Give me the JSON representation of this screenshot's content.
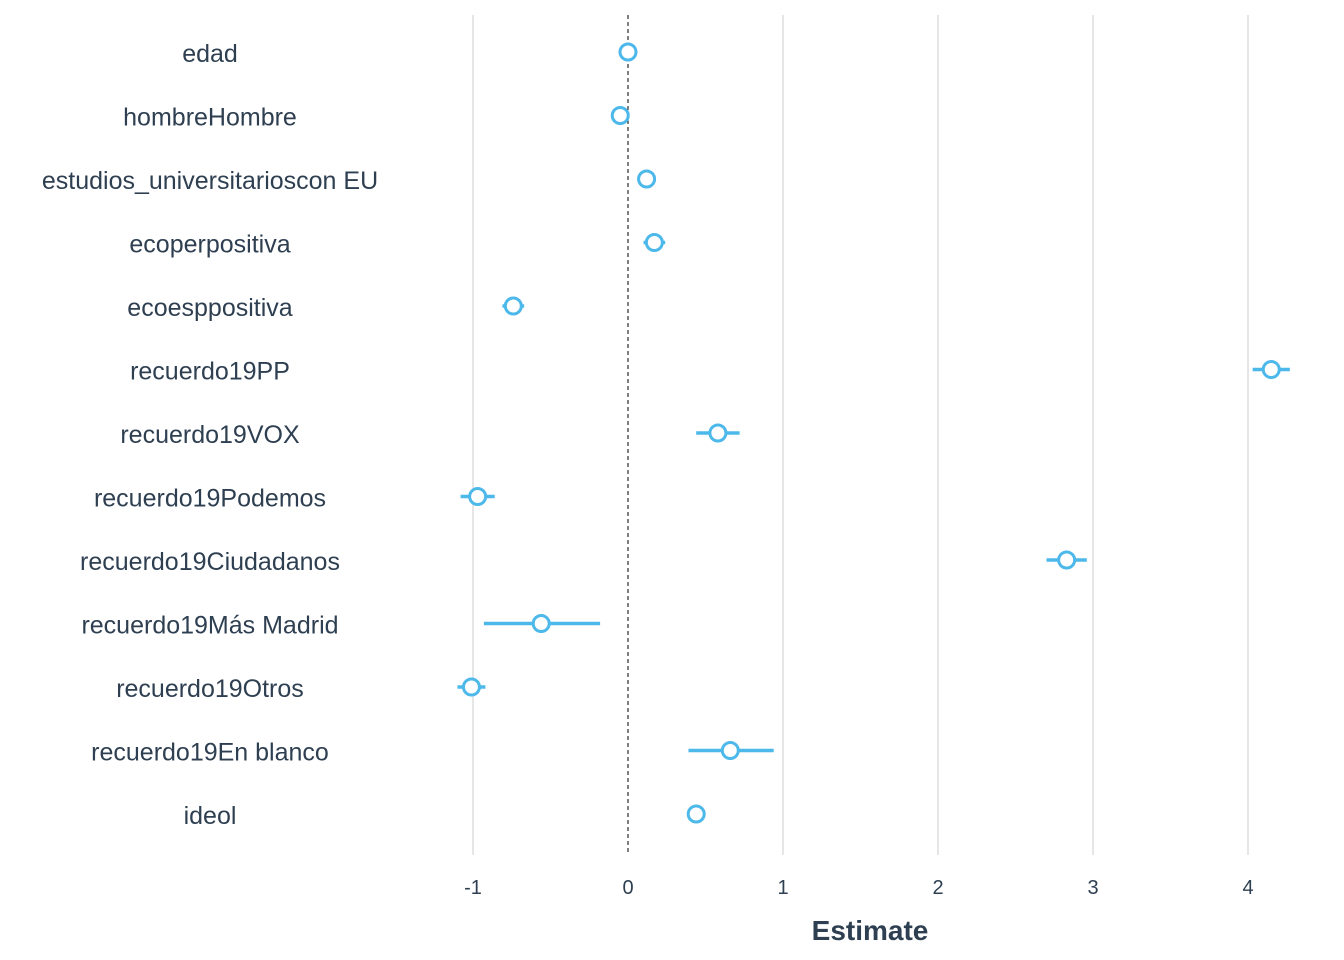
{
  "chart_data": {
    "type": "scatter",
    "title": "",
    "xlabel": "Estimate",
    "ylabel": "",
    "xlim": [
      -1.37,
      4.27
    ],
    "x_ticks": [
      -1,
      0,
      1,
      2,
      3,
      4
    ],
    "x_tick_labels": [
      "-1",
      "0",
      "1",
      "2",
      "3",
      "4"
    ],
    "reference_line": 0,
    "grid": "vertical major lines only",
    "legend": "none",
    "point_color": "#4db8ea",
    "series": [
      {
        "terms": [
          "edad",
          "hombreHombre",
          "estudios_universitarioscon EU",
          "ecoperpositiva",
          "ecoesppositiva",
          "recuerdo19PP",
          "recuerdo19VOX",
          "recuerdo19Podemos",
          "recuerdo19Ciudadanos",
          "recuerdo19Más Madrid",
          "recuerdo19Otros",
          "recuerdo19En blanco",
          "ideol"
        ],
        "estimate": [
          0.0,
          -0.05,
          0.12,
          0.17,
          -0.74,
          4.15,
          0.58,
          -0.97,
          2.83,
          -0.56,
          -1.01,
          0.66,
          0.44
        ],
        "conf_low": [
          -0.02,
          -0.09,
          0.06,
          0.1,
          -0.81,
          4.03,
          0.44,
          -1.08,
          2.7,
          -0.93,
          -1.1,
          0.39,
          0.41
        ],
        "conf_high": [
          0.02,
          -0.01,
          0.18,
          0.24,
          -0.67,
          4.27,
          0.72,
          -0.86,
          2.96,
          -0.18,
          -0.92,
          0.94,
          0.47
        ]
      }
    ]
  }
}
